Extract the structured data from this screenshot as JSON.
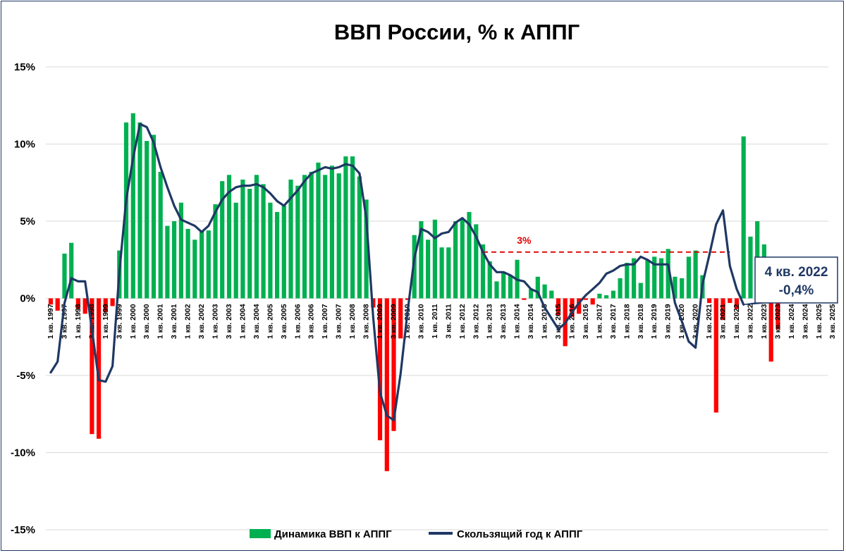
{
  "chart_data": {
    "type": "bar",
    "title": "ВВП России, % к АППГ",
    "ylim": [
      -15,
      15
    ],
    "yticks": [
      15,
      10,
      5,
      0,
      -5,
      -10,
      -15
    ],
    "ytick_labels": [
      "15%",
      "10%",
      "5%",
      "0%",
      "-5%",
      "-10%",
      "-15%"
    ],
    "grid": true,
    "legend_position": "bottom",
    "colors": {
      "positive": "#00b050",
      "negative": "#ff0000",
      "line": "#1f3864",
      "reference": "#e00000"
    },
    "x_tick_labels": [
      "1 кв. 1997",
      "3 кв. 1997",
      "1 кв. 1998",
      "3 кв. 1998",
      "1 кв. 1999",
      "3 кв. 1999",
      "1 кв. 2000",
      "3 кв. 2000",
      "1 кв. 2001",
      "3 кв. 2001",
      "1 кв. 2002",
      "3 кв. 2002",
      "1 кв. 2003",
      "3 кв. 2003",
      "1 кв. 2004",
      "3 кв. 2004",
      "1 кв. 2005",
      "3 кв. 2005",
      "1 кв. 2006",
      "3 кв. 2006",
      "1 кв. 2007",
      "3 кв. 2007",
      "1 кв. 2008",
      "3 кв. 2008",
      "1 кв. 2009",
      "3 кв. 2009",
      "1 кв. 2010",
      "3 кв. 2010",
      "1 кв. 2011",
      "3 кв. 2011",
      "1 кв. 2012",
      "3 кв. 2012",
      "1 кв. 2013",
      "3 кв. 2013",
      "1 кв. 2014",
      "3 кв. 2014",
      "1 кв. 2015",
      "3 кв. 2015",
      "1 кв. 2016",
      "3 кв. 2016",
      "1 кв. 2017",
      "3 кв. 2017",
      "1 кв. 2018",
      "3 кв. 2018",
      "1 кв. 2019",
      "3 кв. 2019",
      "1 кв. 2020",
      "3 кв. 2020",
      "1 кв. 2021",
      "3 кв. 2021",
      "1 кв. 2022",
      "3 кв. 2022",
      "1 кв. 2023",
      "3 кв. 2023",
      "1 кв. 2024",
      "3 кв. 2024",
      "1 кв. 2025",
      "3 кв. 2025"
    ],
    "series": [
      {
        "name": "Динамика ВВП к АППГ",
        "type": "bar",
        "values": [
          -0.4,
          -0.8,
          2.9,
          3.6,
          -0.7,
          -1.0,
          -8.8,
          -9.1,
          -0.9,
          -0.5,
          3.1,
          11.4,
          12.0,
          11.4,
          10.2,
          10.6,
          8.2,
          4.7,
          5.0,
          6.2,
          4.5,
          3.8,
          4.4,
          4.4,
          6.1,
          7.6,
          8.0,
          6.2,
          7.7,
          7.1,
          8.0,
          7.4,
          6.2,
          5.6,
          6.0,
          7.7,
          7.3,
          8.0,
          8.2,
          8.8,
          8.0,
          8.6,
          8.1,
          9.2,
          9.2,
          7.9,
          6.4,
          -0.6,
          -9.2,
          -11.2,
          -8.6,
          -2.6,
          -0.1,
          4.1,
          5.0,
          3.8,
          5.1,
          3.3,
          3.3,
          5.0,
          5.1,
          5.6,
          4.8,
          3.5,
          2.4,
          1.1,
          1.7,
          1.5,
          2.5,
          -0.1,
          0.6,
          1.4,
          0.9,
          0.5,
          -1.1,
          -3.1,
          -1.2,
          -1.0,
          -0.1,
          -0.4,
          0.3,
          0.2,
          0.5,
          1.3,
          2.3,
          2.6,
          1.0,
          2.5,
          2.7,
          2.6,
          3.2,
          1.4,
          1.3,
          2.7,
          3.1,
          1.5,
          -0.3,
          -7.4,
          -1.4,
          -0.3,
          -0.7,
          10.5,
          4.0,
          5.0,
          3.5,
          -4.1,
          -2.0,
          1.0
        ]
      },
      {
        "name": "Скользящий год к АППГ",
        "type": "line",
        "values": [
          -4.8,
          -4.1,
          -0.3,
          1.3,
          1.1,
          1.1,
          -2.0,
          -5.3,
          -5.4,
          -4.4,
          1.7,
          6.4,
          9.1,
          11.3,
          11.1,
          10.1,
          8.5,
          7.2,
          6.0,
          5.1,
          4.9,
          4.7,
          4.3,
          4.7,
          5.6,
          6.4,
          6.9,
          7.2,
          7.3,
          7.3,
          7.4,
          7.2,
          6.8,
          6.3,
          6.0,
          6.5,
          7.0,
          7.6,
          8.1,
          8.3,
          8.5,
          8.4,
          8.5,
          8.7,
          8.6,
          8.1,
          5.2,
          -1.2,
          -6.1,
          -7.6,
          -7.9,
          -4.9,
          -0.9,
          2.6,
          4.5,
          4.3,
          3.9,
          4.2,
          4.3,
          4.9,
          5.2,
          4.8,
          4.0,
          3.0,
          2.2,
          1.7,
          1.7,
          1.5,
          1.2,
          1.1,
          0.6,
          0.4,
          -0.6,
          -1.3,
          -2.0,
          -1.6,
          -0.9,
          -0.3,
          0.2,
          0.6,
          1.0,
          1.6,
          1.8,
          2.1,
          2.2,
          2.2,
          2.7,
          2.5,
          2.2,
          2.2,
          2.2,
          -0.3,
          -1.5,
          -2.8,
          -3.2,
          0.9,
          2.8,
          4.8,
          5.7,
          2.1,
          0.6,
          -0.4
        ]
      }
    ],
    "reference_line": {
      "value": 3,
      "label": "3%"
    },
    "callout": {
      "line1": "4 кв. 2022",
      "line2": "-0,4%"
    }
  }
}
